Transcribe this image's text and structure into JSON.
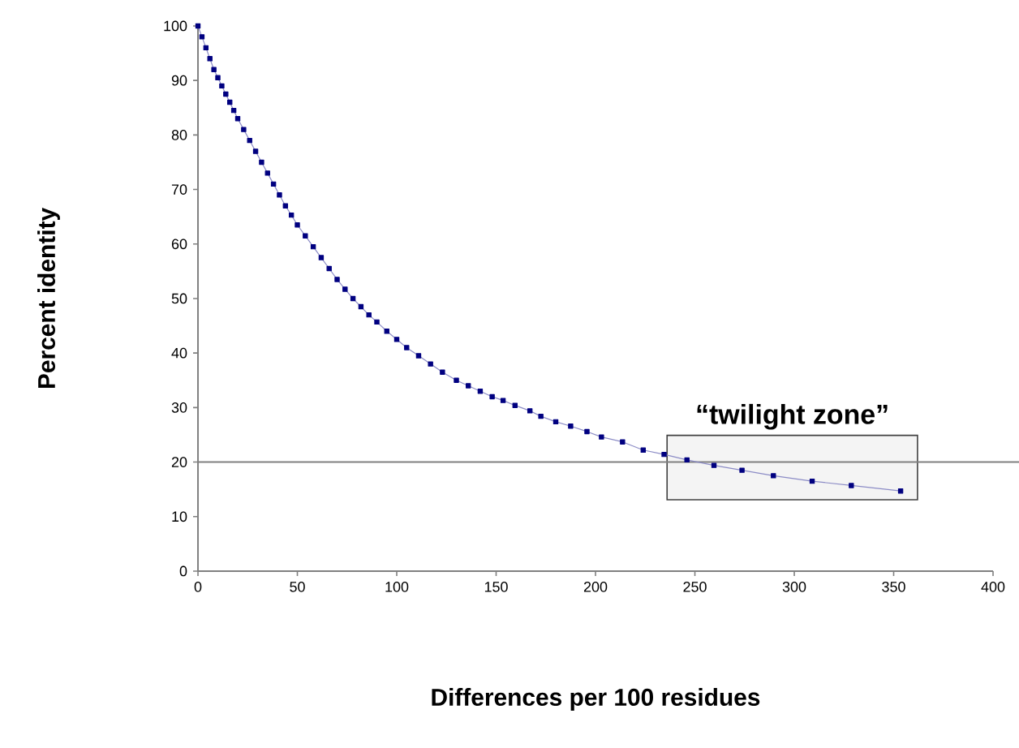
{
  "chart_data": {
    "type": "line",
    "xlabel": "Differences per 100 residues",
    "ylabel": "Percent identity",
    "x": [
      0,
      2,
      4,
      6,
      8,
      10,
      12,
      14,
      16,
      18,
      20,
      23,
      26,
      29,
      32,
      35,
      38,
      41,
      44,
      47,
      50,
      54,
      58,
      62,
      66,
      70,
      74,
      78,
      82,
      86,
      90,
      95,
      100,
      105,
      111,
      117,
      123,
      130,
      136,
      142,
      148,
      153.5,
      159.5,
      167,
      172.5,
      180,
      187.5,
      195.7,
      203,
      213.6,
      224,
      234.5,
      246,
      259.6,
      273.7,
      289.5,
      309,
      328.7,
      353.5
    ],
    "series": [
      {
        "color": "#000080",
        "values": [
          100,
          98,
          96,
          94,
          92,
          90.5,
          89,
          87.5,
          86,
          84.5,
          83,
          81,
          79,
          77,
          75,
          73,
          71,
          69,
          67,
          65.3,
          63.5,
          61.5,
          59.5,
          57.5,
          55.5,
          53.5,
          51.7,
          50,
          48.5,
          47,
          45.7,
          44,
          42.5,
          41,
          39.5,
          38,
          36.5,
          35,
          34,
          33,
          32,
          31.3,
          30.4,
          29.4,
          28.4,
          27.4,
          26.6,
          25.6,
          24.6,
          23.7,
          22.2,
          21.4,
          20.4,
          19.4,
          18.5,
          17.5,
          16.5,
          15.7,
          14.7
        ]
      }
    ],
    "marker": "square",
    "line_style": "solid",
    "xlim": [
      0,
      400
    ],
    "xticks": [
      0,
      50,
      100,
      150,
      200,
      250,
      300,
      350,
      400
    ],
    "ylim": [
      0,
      100
    ],
    "yticks": [
      0,
      10,
      20,
      30,
      40,
      50,
      60,
      70,
      80,
      90,
      100
    ],
    "ref_lines": [
      {
        "axis": "y",
        "value": 20,
        "color": "#808080"
      }
    ],
    "bands": [
      {
        "axis": "x",
        "from": 236,
        "to": 362,
        "label": "“twilight zone”",
        "color": "#404040"
      }
    ]
  }
}
